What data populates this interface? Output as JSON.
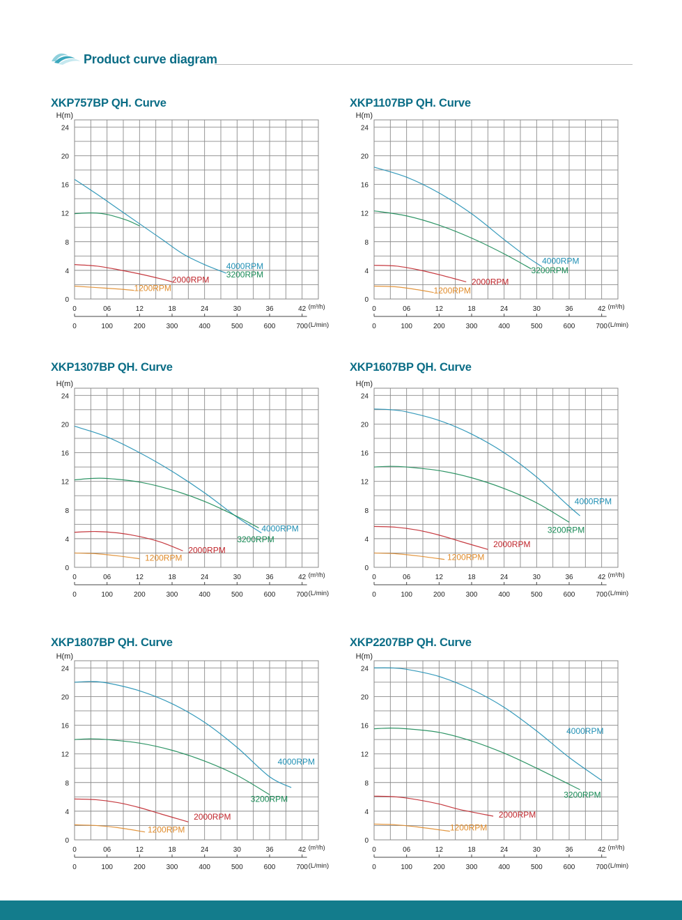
{
  "page": {
    "title": "Product curve diagram",
    "colors": {
      "accent": "#0b6d86",
      "footer": "#137c8c",
      "grid": "#8a8a8a"
    },
    "icon": "wave-logo-icon"
  },
  "chart_data": [
    {
      "type": "line",
      "title": "XKP757BP QH. Curve",
      "ylabel": "H(m)",
      "y_ticks": [
        "0",
        "4",
        "8",
        "12",
        "16",
        "20",
        "24"
      ],
      "x_ticks": [
        "0",
        "06",
        "12",
        "18",
        "24",
        "30",
        "36",
        "42"
      ],
      "x_unit": "(m³/h)",
      "x2_ticks": [
        "0",
        "100",
        "200",
        "300",
        "400",
        "500",
        "600",
        "700"
      ],
      "x2_unit": "(L/min)",
      "xlim": [
        0,
        45
      ],
      "ylim": [
        0,
        25
      ],
      "grid": true,
      "series": [
        {
          "name": "4000RPM",
          "color": "#1f8fb4",
          "x": [
            0,
            4,
            8,
            12,
            16,
            20,
            24,
            28
          ],
          "y": [
            16.7,
            14.7,
            12.6,
            10.5,
            8.4,
            6.3,
            4.8,
            3.6
          ],
          "label_at": [
            28,
            4.2
          ]
        },
        {
          "name": "3200RPM",
          "color": "#178a55",
          "x": [
            0,
            2,
            4,
            6,
            8,
            10,
            12
          ],
          "y": [
            11.9,
            12.0,
            12.0,
            11.8,
            11.4,
            10.9,
            10.2
          ],
          "label_at": [
            28,
            3.0
          ]
        },
        {
          "name": "2000RPM",
          "color": "#c0252b",
          "x": [
            0,
            4,
            8,
            12,
            16,
            18
          ],
          "y": [
            4.8,
            4.6,
            4.1,
            3.5,
            2.8,
            2.4
          ],
          "label_at": [
            18,
            2.3
          ]
        },
        {
          "name": "1200RPM",
          "color": "#e08b2a",
          "x": [
            0,
            4,
            8,
            11
          ],
          "y": [
            1.8,
            1.6,
            1.4,
            1.2
          ],
          "label_at": [
            11,
            1.1
          ]
        }
      ]
    },
    {
      "type": "line",
      "title": "XKP1107BP QH. Curve",
      "ylabel": "H(m)",
      "y_ticks": [
        "0",
        "4",
        "8",
        "12",
        "16",
        "20",
        "24"
      ],
      "x_ticks": [
        "0",
        "06",
        "12",
        "18",
        "24",
        "30",
        "36",
        "42"
      ],
      "x_unit": "(m³/h)",
      "x2_ticks": [
        "0",
        "100",
        "200",
        "300",
        "400",
        "500",
        "600",
        "700"
      ],
      "x2_unit": "(L/min)",
      "xlim": [
        0,
        45
      ],
      "ylim": [
        0,
        25
      ],
      "grid": true,
      "series": [
        {
          "name": "4000RPM",
          "color": "#1f8fb4",
          "x": [
            0,
            6,
            12,
            18,
            24,
            28,
            31
          ],
          "y": [
            18.4,
            17.0,
            14.8,
            11.9,
            8.3,
            6.0,
            4.5
          ],
          "label_at": [
            31,
            4.9
          ]
        },
        {
          "name": "3200RPM",
          "color": "#178a55",
          "x": [
            0,
            6,
            12,
            18,
            24,
            29
          ],
          "y": [
            12.3,
            11.6,
            10.3,
            8.5,
            6.3,
            4.2
          ],
          "label_at": [
            29,
            3.6
          ]
        },
        {
          "name": "2000RPM",
          "color": "#c0252b",
          "x": [
            0,
            4,
            8,
            12,
            17
          ],
          "y": [
            4.7,
            4.6,
            4.1,
            3.4,
            2.4
          ],
          "label_at": [
            18,
            2.0
          ]
        },
        {
          "name": "1200RPM",
          "color": "#e08b2a",
          "x": [
            0,
            4,
            8,
            11
          ],
          "y": [
            1.8,
            1.7,
            1.3,
            0.9
          ],
          "label_at": [
            11,
            0.8
          ]
        }
      ]
    },
    {
      "type": "line",
      "title": "XKP1307BP QH. Curve",
      "ylabel": "H(m)",
      "y_ticks": [
        "0",
        "4",
        "8",
        "12",
        "16",
        "20",
        "24"
      ],
      "x_ticks": [
        "0",
        "06",
        "12",
        "18",
        "24",
        "30",
        "36",
        "42"
      ],
      "x_unit": "(m³/h)",
      "x2_ticks": [
        "0",
        "100",
        "200",
        "300",
        "400",
        "500",
        "600",
        "700"
      ],
      "x2_unit": "(L/min)",
      "xlim": [
        0,
        45
      ],
      "ylim": [
        0,
        25
      ],
      "grid": true,
      "series": [
        {
          "name": "4000RPM",
          "color": "#1f8fb4",
          "x": [
            0,
            6,
            12,
            18,
            24,
            30,
            34.5
          ],
          "y": [
            19.7,
            18.2,
            16.0,
            13.4,
            10.4,
            7.0,
            4.8
          ],
          "label_at": [
            34.5,
            5.0
          ]
        },
        {
          "name": "3200RPM",
          "color": "#178a55",
          "x": [
            0,
            3,
            6,
            12,
            18,
            24,
            30,
            34
          ],
          "y": [
            12.2,
            12.4,
            12.4,
            11.9,
            10.8,
            9.2,
            7.1,
            5.5
          ],
          "label_at": [
            30,
            3.5
          ]
        },
        {
          "name": "2000RPM",
          "color": "#c0252b",
          "x": [
            0,
            4,
            8,
            12,
            16,
            20
          ],
          "y": [
            4.9,
            5.0,
            4.8,
            4.3,
            3.5,
            2.3
          ],
          "label_at": [
            21,
            2.0
          ]
        },
        {
          "name": "1200RPM",
          "color": "#e08b2a",
          "x": [
            0,
            4,
            8,
            12
          ],
          "y": [
            2.0,
            1.9,
            1.6,
            1.2
          ],
          "label_at": [
            13,
            0.9
          ]
        }
      ]
    },
    {
      "type": "line",
      "title": "XKP1607BP QH. Curve",
      "ylabel": "H(m)",
      "y_ticks": [
        "0",
        "4",
        "8",
        "12",
        "16",
        "20",
        "24"
      ],
      "x_ticks": [
        "0",
        "06",
        "12",
        "18",
        "24",
        "30",
        "36",
        "42"
      ],
      "x_unit": "(m³/h)",
      "x2_ticks": [
        "0",
        "100",
        "200",
        "300",
        "400",
        "500",
        "600",
        "700"
      ],
      "x2_unit": "(L/min)",
      "xlim": [
        0,
        45
      ],
      "ylim": [
        0,
        25
      ],
      "grid": true,
      "series": [
        {
          "name": "4000RPM",
          "color": "#1f8fb4",
          "x": [
            0,
            3,
            6,
            12,
            18,
            24,
            30,
            36,
            38
          ],
          "y": [
            22.1,
            22.0,
            21.7,
            20.5,
            18.6,
            16.0,
            12.6,
            8.5,
            7.2
          ],
          "label_at": [
            37,
            8.8
          ]
        },
        {
          "name": "3200RPM",
          "color": "#178a55",
          "x": [
            0,
            3,
            6,
            12,
            18,
            24,
            30,
            36
          ],
          "y": [
            14.0,
            14.1,
            14.0,
            13.5,
            12.5,
            11.0,
            9.0,
            6.3
          ],
          "label_at": [
            32,
            4.8
          ]
        },
        {
          "name": "2000RPM",
          "color": "#c0252b",
          "x": [
            0,
            4,
            8,
            12,
            16,
            21
          ],
          "y": [
            5.7,
            5.6,
            5.2,
            4.5,
            3.6,
            2.5
          ],
          "label_at": [
            22,
            2.8
          ]
        },
        {
          "name": "1200RPM",
          "color": "#e08b2a",
          "x": [
            0,
            4,
            8,
            13
          ],
          "y": [
            2.0,
            1.9,
            1.6,
            1.1
          ],
          "label_at": [
            13.5,
            1.0
          ]
        }
      ]
    },
    {
      "type": "line",
      "title": "XKP1807BP QH. Curve",
      "ylabel": "H(m)",
      "y_ticks": [
        "0",
        "4",
        "8",
        "12",
        "16",
        "20",
        "24"
      ],
      "x_ticks": [
        "0",
        "06",
        "12",
        "18",
        "24",
        "30",
        "36",
        "42"
      ],
      "x_unit": "(m³/h)",
      "x2_ticks": [
        "0",
        "100",
        "200",
        "300",
        "400",
        "500",
        "600",
        "700"
      ],
      "x2_unit": "(L/min)",
      "xlim": [
        0,
        45
      ],
      "ylim": [
        0,
        25
      ],
      "grid": true,
      "series": [
        {
          "name": "4000RPM",
          "color": "#1f8fb4",
          "x": [
            0,
            3,
            6,
            12,
            18,
            24,
            30,
            36,
            40
          ],
          "y": [
            22.0,
            22.1,
            21.9,
            20.8,
            19.0,
            16.4,
            12.9,
            8.8,
            7.3
          ],
          "label_at": [
            37.5,
            10.5
          ]
        },
        {
          "name": "3200RPM",
          "color": "#178a55",
          "x": [
            0,
            3,
            6,
            12,
            18,
            24,
            30,
            36
          ],
          "y": [
            14.0,
            14.1,
            14.0,
            13.5,
            12.5,
            11.0,
            9.0,
            6.3
          ],
          "label_at": [
            32.5,
            5.3
          ]
        },
        {
          "name": "2000RPM",
          "color": "#c0252b",
          "x": [
            0,
            4,
            8,
            12,
            16,
            21
          ],
          "y": [
            5.7,
            5.6,
            5.2,
            4.5,
            3.6,
            2.5
          ],
          "label_at": [
            22,
            2.8
          ]
        },
        {
          "name": "1200RPM",
          "color": "#e08b2a",
          "x": [
            0,
            4,
            8,
            13
          ],
          "y": [
            2.1,
            2.0,
            1.7,
            1.1
          ],
          "label_at": [
            13.5,
            1.0
          ]
        }
      ]
    },
    {
      "type": "line",
      "title": "XKP2207BP QH. Curve",
      "ylabel": "H(m)",
      "y_ticks": [
        "0",
        "4",
        "8",
        "12",
        "16",
        "20",
        "24"
      ],
      "x_ticks": [
        "0",
        "06",
        "12",
        "18",
        "24",
        "30",
        "36",
        "42"
      ],
      "x_unit": "(m³/h)",
      "x2_ticks": [
        "0",
        "100",
        "200",
        "300",
        "400",
        "500",
        "600",
        "700"
      ],
      "x2_unit": "(L/min)",
      "xlim": [
        0,
        45
      ],
      "ylim": [
        0,
        25
      ],
      "grid": true,
      "series": [
        {
          "name": "4000RPM",
          "color": "#1f8fb4",
          "x": [
            0,
            3,
            6,
            12,
            18,
            24,
            30,
            36,
            42
          ],
          "y": [
            24.0,
            24.0,
            23.8,
            22.8,
            21.0,
            18.5,
            15.2,
            11.5,
            8.3
          ],
          "label_at": [
            35.5,
            14.8
          ]
        },
        {
          "name": "3200RPM",
          "color": "#178a55",
          "x": [
            0,
            3,
            6,
            12,
            18,
            24,
            30,
            38
          ],
          "y": [
            15.5,
            15.6,
            15.5,
            15.0,
            13.8,
            12.1,
            10.0,
            7.0
          ],
          "label_at": [
            35,
            5.9
          ]
        },
        {
          "name": "2000RPM",
          "color": "#c0252b",
          "x": [
            0,
            4,
            8,
            12,
            16,
            22
          ],
          "y": [
            6.1,
            6.0,
            5.6,
            5.0,
            4.2,
            3.3
          ],
          "label_at": [
            23,
            3.1
          ]
        },
        {
          "name": "1200RPM",
          "color": "#e08b2a",
          "x": [
            0,
            4,
            8,
            14
          ],
          "y": [
            2.2,
            2.1,
            1.8,
            1.2
          ],
          "label_at": [
            14,
            1.3
          ]
        }
      ]
    }
  ]
}
